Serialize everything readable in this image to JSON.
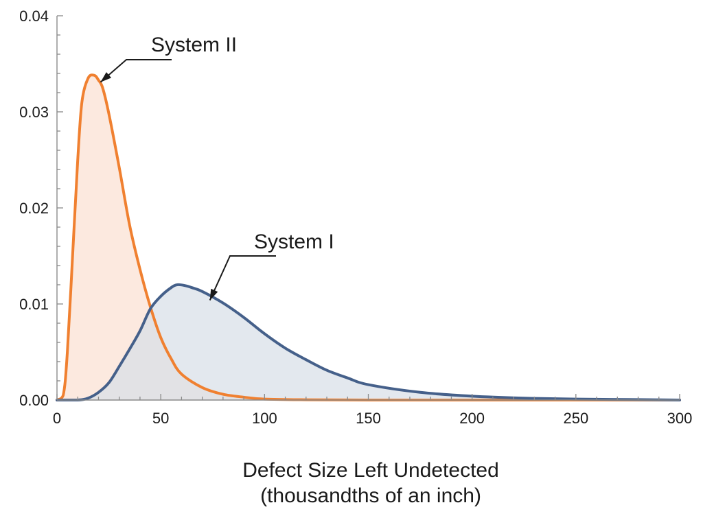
{
  "chart_data": {
    "type": "area",
    "xlabel": "Defect Size Left Undetected",
    "xlabel_line2": "(thousandths of an inch)",
    "ylabel": "",
    "xlim": [
      0,
      300
    ],
    "ylim": [
      0,
      0.04
    ],
    "xticks": [
      0,
      50,
      100,
      150,
      200,
      250,
      300
    ],
    "xtick_labels": [
      "0",
      "50",
      "100",
      "150",
      "200",
      "250",
      "300"
    ],
    "yticks": [
      0,
      0.01,
      0.02,
      0.03,
      0.04
    ],
    "ytick_labels": [
      "0.00",
      "0.01",
      "0.02",
      "0.03",
      "0.04"
    ],
    "grid": false,
    "series": [
      {
        "name": "System II",
        "color": "#f08030",
        "fill": "#fbe1d2",
        "x": [
          0,
          3,
          5,
          8,
          10,
          12,
          15,
          18,
          20,
          22,
          25,
          30,
          35,
          40,
          45,
          50,
          55,
          60,
          70,
          80,
          90,
          100,
          120,
          150,
          200,
          300
        ],
        "y": [
          0,
          0.0005,
          0.005,
          0.017,
          0.025,
          0.031,
          0.0335,
          0.0338,
          0.0333,
          0.0325,
          0.0298,
          0.0242,
          0.0182,
          0.0136,
          0.0097,
          0.0065,
          0.0043,
          0.0027,
          0.0013,
          0.0006,
          0.0003,
          0.0001,
          3e-05,
          0.0,
          0.0,
          0.0
        ]
      },
      {
        "name": "System I",
        "color": "#45608a",
        "fill": "#d8dfe7",
        "x": [
          0,
          10,
          15,
          20,
          25,
          30,
          35,
          40,
          45,
          50,
          55,
          58,
          62,
          65,
          70,
          80,
          90,
          100,
          110,
          120,
          130,
          140,
          150,
          175,
          200,
          225,
          250,
          275,
          300
        ],
        "y": [
          0,
          0.0,
          0.0002,
          0.0008,
          0.0018,
          0.0035,
          0.0053,
          0.0072,
          0.0095,
          0.0108,
          0.0117,
          0.012,
          0.0119,
          0.0117,
          0.0113,
          0.0101,
          0.0086,
          0.0069,
          0.0054,
          0.0042,
          0.0031,
          0.0023,
          0.0016,
          0.0008,
          0.0004,
          0.0002,
          0.0001,
          5e-05,
          0.0
        ]
      }
    ],
    "annotations": [
      {
        "text": "System II",
        "target_x": 19,
        "target_y": 0.0338
      },
      {
        "text": "System I",
        "target_x": 72,
        "target_y": 0.0111
      }
    ]
  }
}
